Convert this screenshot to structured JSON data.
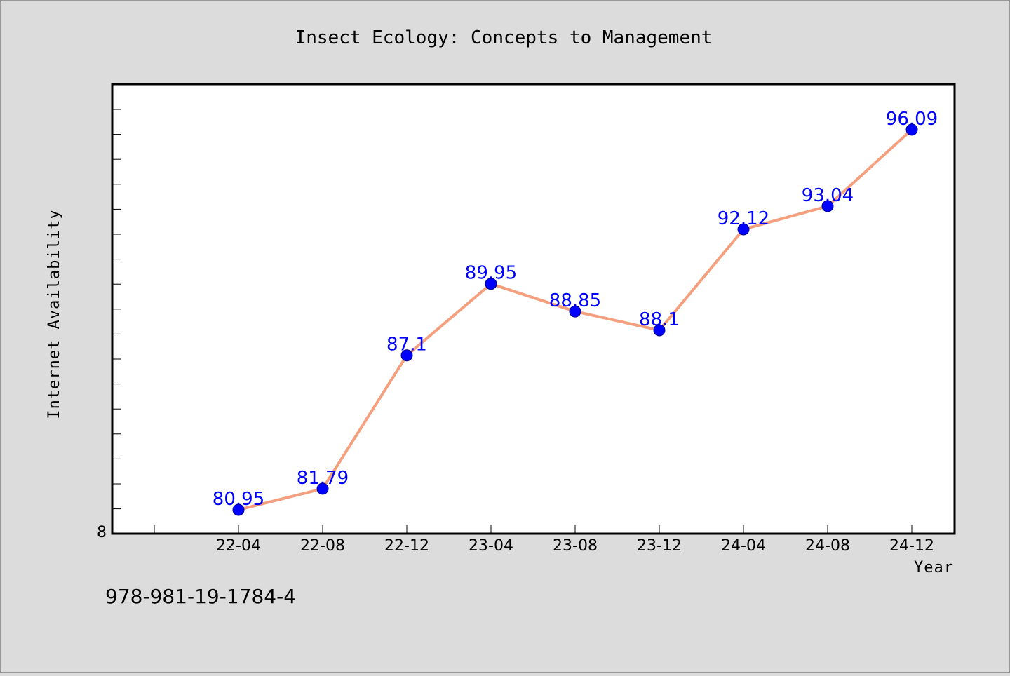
{
  "chart_data": {
    "type": "line",
    "title": "Insect Ecology: Concepts to Management",
    "xlabel": "Year",
    "ylabel": "Internet Availability",
    "categories": [
      "22-04",
      "22-08",
      "22-12",
      "23-04",
      "23-08",
      "23-12",
      "24-04",
      "24-08",
      "24-12"
    ],
    "series": [
      {
        "values": [
          80.95,
          81.79,
          87.1,
          89.95,
          88.85,
          88.1,
          92.12,
          93.04,
          96.09
        ],
        "labels": [
          "80.95",
          "81.79",
          "87.1",
          "89.95",
          "88.85",
          "88.1",
          "92.12",
          "93.04",
          "96.09"
        ],
        "line_color": "#f4a07e",
        "marker_color": "#0000ff"
      }
    ],
    "y_tick_label": "8",
    "ylim": [
      80,
      97.9
    ],
    "grid": false,
    "legend": "none"
  },
  "footnote": "978-981-19-1784-4",
  "colors": {
    "background": "#dcdcdc",
    "plot_background": "#ffffff",
    "data_label": "#0000ff"
  }
}
